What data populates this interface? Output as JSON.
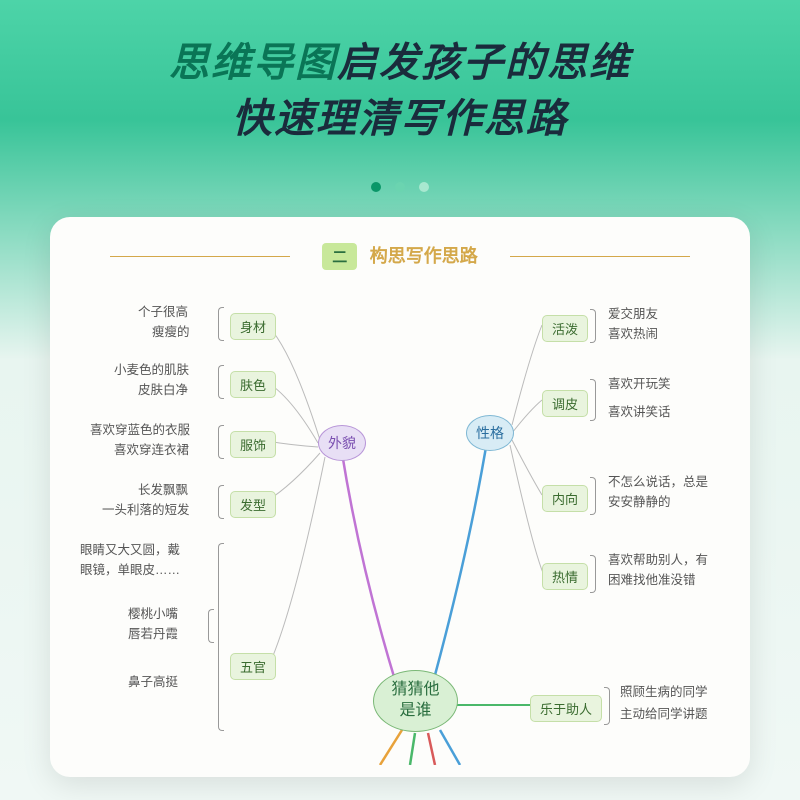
{
  "header": {
    "line1_accent": "思维导图",
    "line1_dark": "启发孩子的思维",
    "line2": "快速理清写作思路"
  },
  "dots": [
    "#0a9668",
    "#6bd4b0",
    "#a8e8d0"
  ],
  "section": {
    "badge": "二",
    "title": "构思写作思路"
  },
  "mindmap": {
    "center": "猜猜他\n是谁",
    "center_bg": "#d9f0d4",
    "center_border": "#7ab876",
    "categories": [
      {
        "id": "appearance",
        "label": "外貌",
        "bg": "#e8dff5",
        "border": "#b896d8",
        "text": "#7a4fb0",
        "line": "#c074d4",
        "children": [
          {
            "label": "身材",
            "leaves": [
              "个子很高",
              "瘦瘦的"
            ]
          },
          {
            "label": "肤色",
            "leaves": [
              "小麦色的肌肤",
              "皮肤白净"
            ]
          },
          {
            "label": "服饰",
            "leaves": [
              "喜欢穿蓝色的衣服",
              "喜欢穿连衣裙"
            ]
          },
          {
            "label": "发型",
            "leaves": [
              "长发飘飘",
              "一头利落的短发"
            ]
          },
          {
            "label": "五官",
            "leaves": [
              "眼睛又大又圆，戴",
              "眼镜，单眼皮……",
              "樱桃小嘴",
              "唇若丹霞",
              "鼻子高挺"
            ]
          }
        ]
      },
      {
        "id": "personality",
        "label": "性格",
        "bg": "#d8ecf5",
        "border": "#7fb8d4",
        "text": "#2a6e9f",
        "line": "#4a9fd8",
        "children": [
          {
            "label": "活泼",
            "leaves": [
              "爱交朋友",
              "喜欢热闹"
            ]
          },
          {
            "label": "调皮",
            "leaves": [
              "喜欢开玩笑",
              "喜欢讲笑话"
            ]
          },
          {
            "label": "内向",
            "leaves": [
              "不怎么说话，总是",
              "安安静静的"
            ]
          },
          {
            "label": "热情",
            "leaves": [
              "喜欢帮助别人，有",
              "困难找他准没错"
            ]
          }
        ]
      },
      {
        "id": "helpful",
        "label": "乐于助人",
        "line": "#4ab86a",
        "leaves": [
          "照顾生病的同学",
          "主动给同学讲题"
        ]
      }
    ],
    "bottom_lines": [
      "#e8a23a",
      "#4ab86a",
      "#d85a5a",
      "#4a9fd8"
    ]
  }
}
